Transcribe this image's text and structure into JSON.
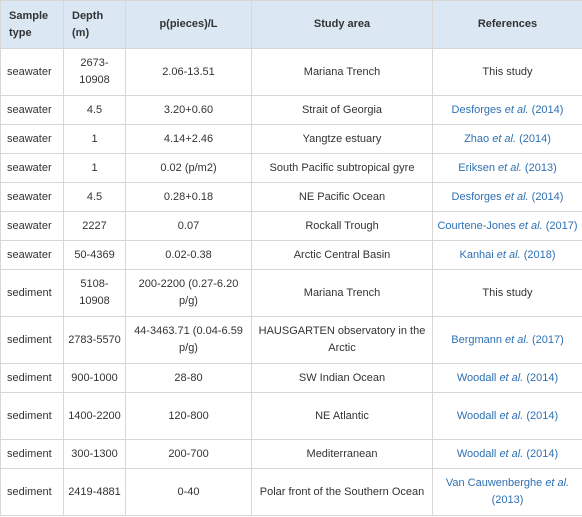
{
  "table": {
    "headers": {
      "sample_type": "Sample type",
      "depth": "Depth (m)",
      "pieces": "p(pieces)/L",
      "study_area": "Study area",
      "references": "References"
    },
    "rows": [
      {
        "type": "seawater",
        "depth": "2673-10908",
        "pieces": "2.06-13.51",
        "area": "Mariana Trench",
        "ref_pre": "This study",
        "ref_et": "",
        "ref_post": "",
        "ref_is_link": false,
        "tall": true
      },
      {
        "type": "seawater",
        "depth": "4.5",
        "pieces": "3.20+0.60",
        "area": "Strait of Georgia",
        "ref_pre": "Desforges ",
        "ref_et": "et al.",
        "ref_post": " (2014)",
        "ref_is_link": true,
        "tall": false
      },
      {
        "type": "seawater",
        "depth": "1",
        "pieces": "4.14+2.46",
        "area": "Yangtze estuary",
        "ref_pre": "Zhao ",
        "ref_et": "et al.",
        "ref_post": " (2014)",
        "ref_is_link": true,
        "tall": false
      },
      {
        "type": "seawater",
        "depth": "1",
        "pieces": "0.02 (p/m2)",
        "area": "South Pacific subtropical gyre",
        "ref_pre": "Eriksen ",
        "ref_et": "et al.",
        "ref_post": " (2013)",
        "ref_is_link": true,
        "tall": false
      },
      {
        "type": "seawater",
        "depth": "4.5",
        "pieces": "0.28+0.18",
        "area": "NE Pacific Ocean",
        "ref_pre": "Desforges ",
        "ref_et": "et al.",
        "ref_post": " (2014)",
        "ref_is_link": true,
        "tall": false
      },
      {
        "type": "seawater",
        "depth": "2227",
        "pieces": "0.07",
        "area": "Rockall Trough",
        "ref_pre": "Courtene-Jones ",
        "ref_et": "et al.",
        "ref_post": " (2017)",
        "ref_is_link": true,
        "tall": false
      },
      {
        "type": "seawater",
        "depth": "50-4369",
        "pieces": "0.02-0.38",
        "area": "Arctic Central Basin",
        "ref_pre": "Kanhai ",
        "ref_et": "et al.",
        "ref_post": " (2018)",
        "ref_is_link": true,
        "tall": false
      },
      {
        "type": "sediment",
        "depth": "5108-10908",
        "pieces": "200-2200 (0.27-6.20 p/g)",
        "area": "Mariana Trench",
        "ref_pre": "This study",
        "ref_et": "",
        "ref_post": "",
        "ref_is_link": false,
        "tall": true
      },
      {
        "type": "sediment",
        "depth": "2783-5570",
        "pieces": "44-3463.71 (0.04-6.59 p/g)",
        "area": "HAUSGARTEN observatory in the Arctic",
        "ref_pre": "Bergmann ",
        "ref_et": "et al.",
        "ref_post": " (2017)",
        "ref_is_link": true,
        "tall": true
      },
      {
        "type": "sediment",
        "depth": "900-1000",
        "pieces": "28-80",
        "area": "SW Indian Ocean",
        "ref_pre": "Woodall ",
        "ref_et": "et al.",
        "ref_post": " (2014)",
        "ref_is_link": true,
        "tall": false
      },
      {
        "type": "sediment",
        "depth": "1400-2200",
        "pieces": "120-800",
        "area": "NE Atlantic",
        "ref_pre": "Woodall ",
        "ref_et": "et al.",
        "ref_post": " (2014)",
        "ref_is_link": true,
        "tall": true
      },
      {
        "type": "sediment",
        "depth": "300-1300",
        "pieces": "200-700",
        "area": "Mediterranean",
        "ref_pre": "Woodall ",
        "ref_et": "et al.",
        "ref_post": " (2014)",
        "ref_is_link": true,
        "tall": false
      },
      {
        "type": "sediment",
        "depth": "2419-4881",
        "pieces": "0-40",
        "area": "Polar front of the Southern Ocean",
        "ref_pre": "Van Cauwenberghe ",
        "ref_et": "et al.",
        "ref_post": " (2013)",
        "ref_is_link": true,
        "tall": true
      }
    ]
  },
  "colors": {
    "header_bg": "#dbe8f4",
    "link": "#2f71b3",
    "border": "#d7d7d7",
    "text": "#333333"
  }
}
